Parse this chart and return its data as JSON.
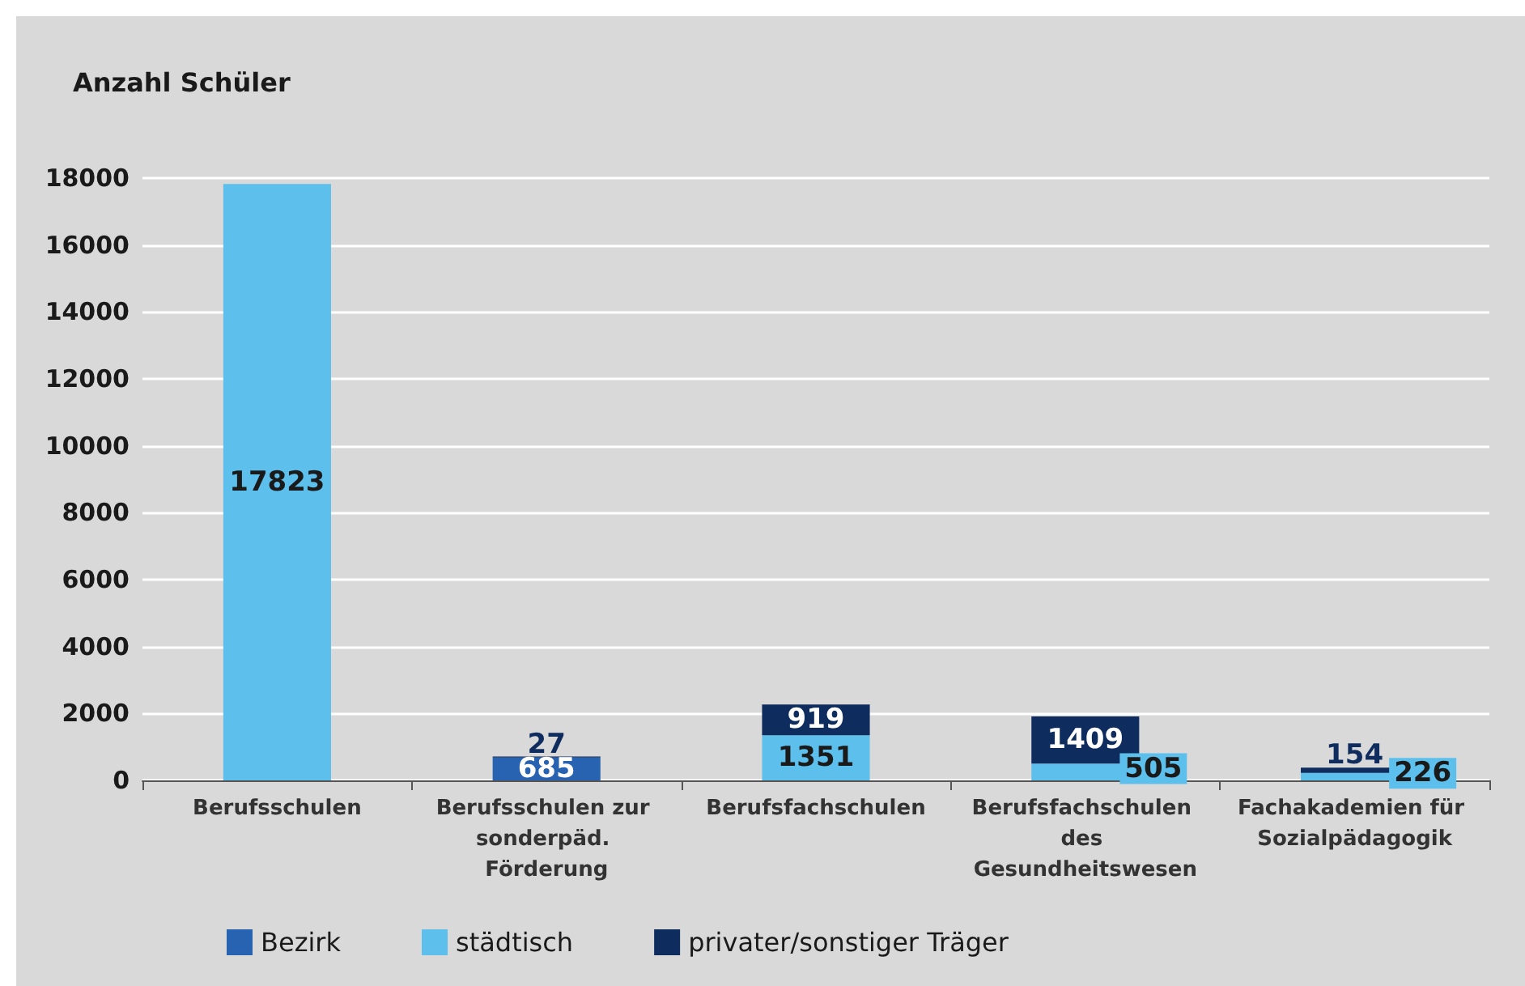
{
  "chart_data": {
    "type": "bar",
    "title": "Anzahl Schüler",
    "stacked": true,
    "data_labels": true,
    "grid": "y",
    "legend": "bottom",
    "categories": [
      "Berufsschulen",
      "Berufsschulen zur sonderpäd. Förderung",
      "Berufsfachschulen",
      "Berufsfachschulen des Gesundheitswesen",
      "Fachakademien für Sozialpädagogik"
    ],
    "series": [
      {
        "name": "Bezirk",
        "color": "#2763b0",
        "values": [
          null,
          685,
          null,
          null,
          null
        ]
      },
      {
        "name": "städtisch",
        "color": "#5dbfec",
        "values": [
          17823,
          null,
          1351,
          505,
          226
        ]
      },
      {
        "name": "privater/sonstiger Träger",
        "color": "#0f2c5e",
        "values": [
          null,
          27,
          919,
          1409,
          154
        ]
      }
    ],
    "ylim": [
      0,
      18000
    ],
    "yticks": [
      0,
      2000,
      4000,
      6000,
      8000,
      10000,
      12000,
      14000,
      16000,
      18000
    ]
  }
}
